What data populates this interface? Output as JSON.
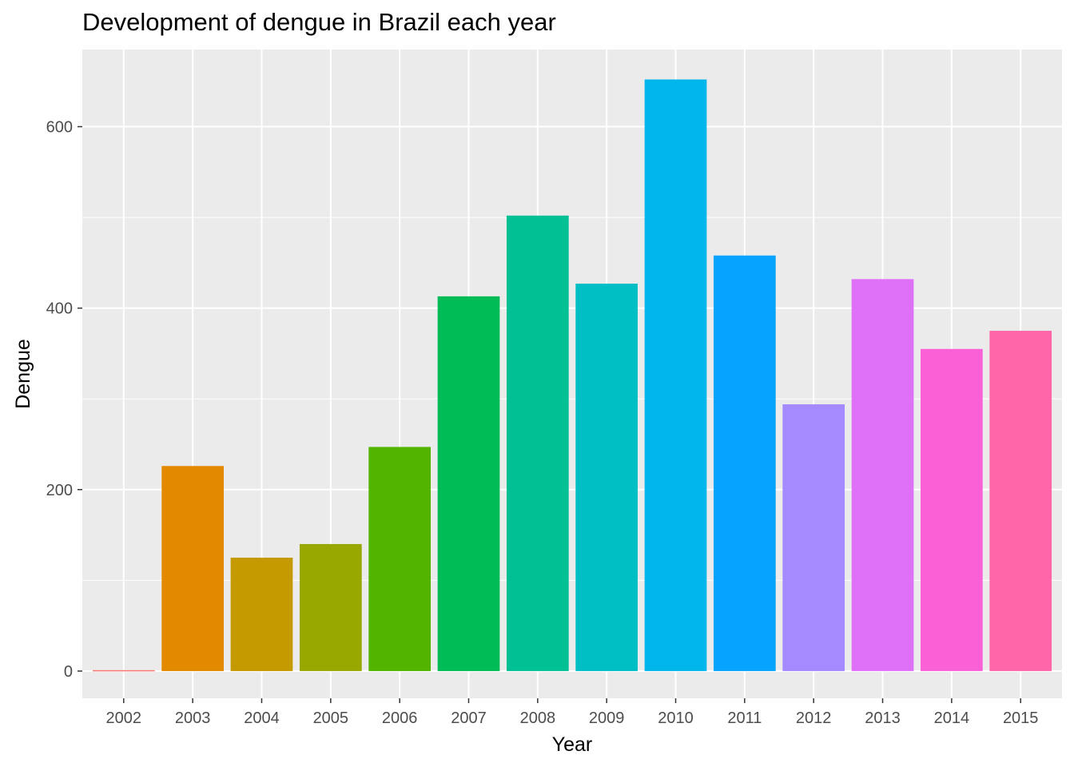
{
  "chart_data": {
    "type": "bar",
    "title": "Development of dengue in Brazil each year",
    "xlabel": "Year",
    "ylabel": "Dengue",
    "categories": [
      "2002",
      "2003",
      "2004",
      "2005",
      "2006",
      "2007",
      "2008",
      "2009",
      "2010",
      "2011",
      "2012",
      "2013",
      "2014",
      "2015"
    ],
    "values": [
      1,
      226,
      125,
      140,
      247,
      413,
      502,
      427,
      652,
      458,
      294,
      432,
      355,
      375
    ],
    "colors": [
      "#F8766D",
      "#E38900",
      "#C49A00",
      "#99A800",
      "#53B400",
      "#00BC56",
      "#00C094",
      "#00BFC4",
      "#00B6EB",
      "#06A4FF",
      "#A58AFF",
      "#DF70F8",
      "#FB61D7",
      "#FF66A8"
    ],
    "ylim": [
      -30,
      685
    ],
    "yticks": [
      0,
      200,
      400,
      600
    ],
    "grid": true,
    "panel_background": "#EBEBEB",
    "grid_color": "#FFFFFF",
    "legend": "none"
  }
}
